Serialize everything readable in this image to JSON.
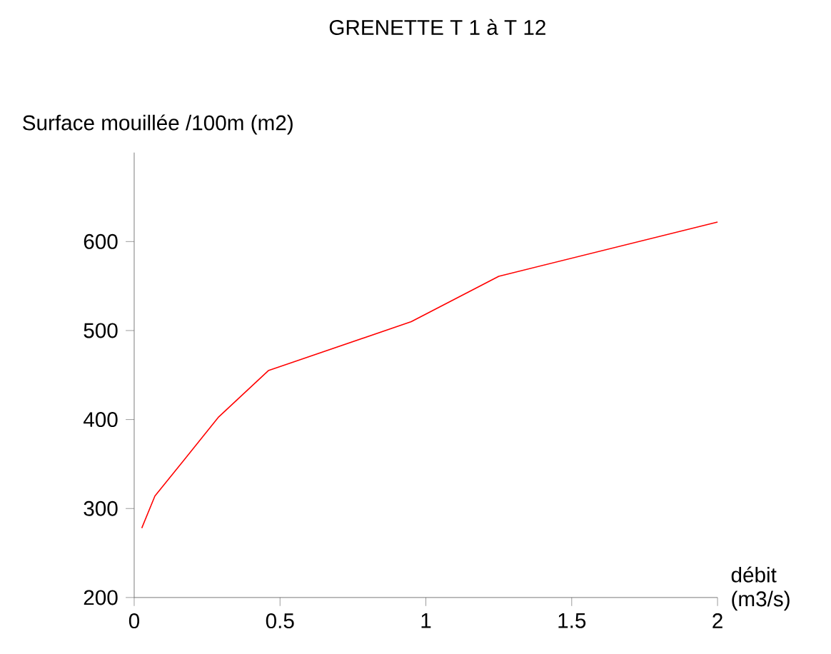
{
  "chart_data": {
    "type": "line",
    "title": "GRENETTE T 1 à T 12",
    "ylabel": "Surface mouillée /100m (m2)",
    "xlabel": "débit (m3/s)",
    "x": [
      0.026,
      0.071,
      0.29,
      0.46,
      0.95,
      1.25,
      2.0
    ],
    "series": [
      {
        "color": "#ff0000",
        "values": [
          278,
          314,
          403,
          455,
          510,
          561,
          622
        ]
      }
    ],
    "xlim": [
      0,
      2
    ],
    "ylim": [
      200,
      700
    ],
    "xticks": [
      0,
      0.5,
      1,
      1.5,
      2
    ],
    "yticks": [
      200,
      300,
      400,
      500,
      600
    ],
    "marker": "none",
    "line_style": "solid"
  }
}
